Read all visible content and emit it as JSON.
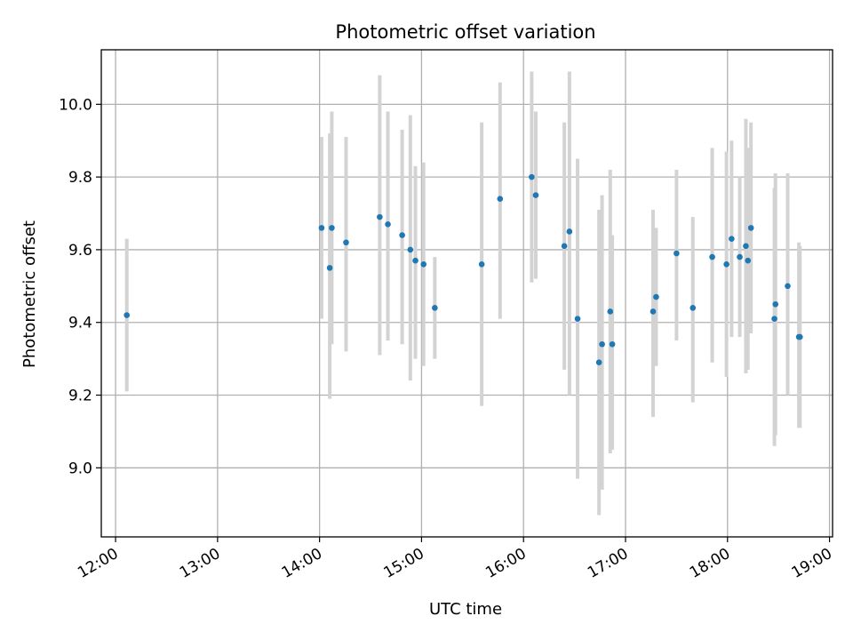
{
  "chart_data": {
    "type": "scatter",
    "title": "Photometric offset variation",
    "xlabel": "UTC time",
    "ylabel": "Photometric offset",
    "x_unit": "hours UTC",
    "xlim": [
      11.86,
      19.03
    ],
    "ylim": [
      8.81,
      10.15
    ],
    "grid": true,
    "marker_color": "#1f77b4",
    "errorbar_color": "#d3d3d3",
    "x_ticks": [
      {
        "value": 12,
        "label": "12:00"
      },
      {
        "value": 13,
        "label": "13:00"
      },
      {
        "value": 14,
        "label": "14:00"
      },
      {
        "value": 15,
        "label": "15:00"
      },
      {
        "value": 16,
        "label": "16:00"
      },
      {
        "value": 17,
        "label": "17:00"
      },
      {
        "value": 18,
        "label": "18:00"
      },
      {
        "value": 19,
        "label": "19:00"
      }
    ],
    "y_ticks": [
      {
        "value": 9.0,
        "label": "9.0"
      },
      {
        "value": 9.2,
        "label": "9.2"
      },
      {
        "value": 9.4,
        "label": "9.4"
      },
      {
        "value": 9.6,
        "label": "9.6"
      },
      {
        "value": 9.8,
        "label": "9.8"
      },
      {
        "value": 10.0,
        "label": "10.0"
      }
    ],
    "points": [
      {
        "x": 12.11,
        "y": 9.42,
        "lo": 9.21,
        "hi": 9.63
      },
      {
        "x": 14.02,
        "y": 9.66,
        "lo": 9.41,
        "hi": 9.91
      },
      {
        "x": 14.1,
        "y": 9.55,
        "lo": 9.19,
        "hi": 9.92
      },
      {
        "x": 14.12,
        "y": 9.66,
        "lo": 9.34,
        "hi": 9.98
      },
      {
        "x": 14.26,
        "y": 9.62,
        "lo": 9.32,
        "hi": 9.91
      },
      {
        "x": 14.59,
        "y": 9.69,
        "lo": 9.31,
        "hi": 10.08
      },
      {
        "x": 14.67,
        "y": 9.67,
        "lo": 9.35,
        "hi": 9.98
      },
      {
        "x": 14.81,
        "y": 9.64,
        "lo": 9.34,
        "hi": 9.93
      },
      {
        "x": 14.89,
        "y": 9.6,
        "lo": 9.24,
        "hi": 9.97
      },
      {
        "x": 14.94,
        "y": 9.57,
        "lo": 9.3,
        "hi": 9.83
      },
      {
        "x": 15.02,
        "y": 9.56,
        "lo": 9.28,
        "hi": 9.84
      },
      {
        "x": 15.13,
        "y": 9.44,
        "lo": 9.3,
        "hi": 9.58
      },
      {
        "x": 15.59,
        "y": 9.56,
        "lo": 9.17,
        "hi": 9.95
      },
      {
        "x": 15.77,
        "y": 9.74,
        "lo": 9.41,
        "hi": 10.06
      },
      {
        "x": 16.08,
        "y": 9.8,
        "lo": 9.51,
        "hi": 10.09
      },
      {
        "x": 16.12,
        "y": 9.75,
        "lo": 9.52,
        "hi": 9.98
      },
      {
        "x": 16.4,
        "y": 9.61,
        "lo": 9.27,
        "hi": 9.95
      },
      {
        "x": 16.45,
        "y": 9.65,
        "lo": 9.2,
        "hi": 10.09
      },
      {
        "x": 16.53,
        "y": 9.41,
        "lo": 8.97,
        "hi": 9.85
      },
      {
        "x": 16.74,
        "y": 9.29,
        "lo": 8.87,
        "hi": 9.71
      },
      {
        "x": 16.77,
        "y": 9.34,
        "lo": 8.94,
        "hi": 9.75
      },
      {
        "x": 16.85,
        "y": 9.43,
        "lo": 9.04,
        "hi": 9.82
      },
      {
        "x": 16.87,
        "y": 9.34,
        "lo": 9.05,
        "hi": 9.64
      },
      {
        "x": 17.27,
        "y": 9.43,
        "lo": 9.14,
        "hi": 9.71
      },
      {
        "x": 17.3,
        "y": 9.47,
        "lo": 9.28,
        "hi": 9.66
      },
      {
        "x": 17.5,
        "y": 9.59,
        "lo": 9.35,
        "hi": 9.82
      },
      {
        "x": 17.66,
        "y": 9.44,
        "lo": 9.18,
        "hi": 9.69
      },
      {
        "x": 17.85,
        "y": 9.58,
        "lo": 9.29,
        "hi": 9.88
      },
      {
        "x": 17.99,
        "y": 9.56,
        "lo": 9.25,
        "hi": 9.87
      },
      {
        "x": 18.04,
        "y": 9.63,
        "lo": 9.36,
        "hi": 9.9
      },
      {
        "x": 18.12,
        "y": 9.58,
        "lo": 9.36,
        "hi": 9.8
      },
      {
        "x": 18.18,
        "y": 9.61,
        "lo": 9.26,
        "hi": 9.96
      },
      {
        "x": 18.2,
        "y": 9.57,
        "lo": 9.27,
        "hi": 9.88
      },
      {
        "x": 18.23,
        "y": 9.66,
        "lo": 9.37,
        "hi": 9.95
      },
      {
        "x": 18.46,
        "y": 9.41,
        "lo": 9.06,
        "hi": 9.77
      },
      {
        "x": 18.47,
        "y": 9.45,
        "lo": 9.09,
        "hi": 9.81
      },
      {
        "x": 18.59,
        "y": 9.5,
        "lo": 9.2,
        "hi": 9.81
      },
      {
        "x": 18.7,
        "y": 9.36,
        "lo": 9.11,
        "hi": 9.62
      },
      {
        "x": 18.71,
        "y": 9.36,
        "lo": 9.11,
        "hi": 9.61
      }
    ]
  }
}
